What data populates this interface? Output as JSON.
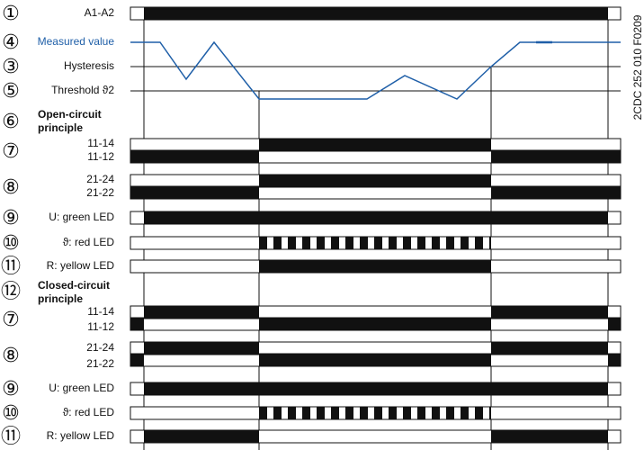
{
  "rows": [
    {
      "num": "①",
      "labels": [
        "A1-A2"
      ]
    },
    {
      "num": "④",
      "labels": [
        "Measured value"
      ]
    },
    {
      "num": "③",
      "labels": [
        "Hysteresis"
      ]
    },
    {
      "num": "⑤",
      "labels": [
        "Threshold ϑ2"
      ]
    },
    {
      "num": "⑥",
      "labels": [
        "Open-circuit",
        "principle"
      ]
    },
    {
      "num": "⑦",
      "labels": [
        "11-14",
        "11-12"
      ]
    },
    {
      "num": "⑧",
      "labels": [
        "21-24",
        "21-22"
      ]
    },
    {
      "num": "⑨",
      "labels": [
        "U: green LED"
      ]
    },
    {
      "num": "⑩",
      "labels": [
        "ϑ: red LED"
      ]
    },
    {
      "num": "⑪",
      "labels": [
        "R: yellow LED"
      ]
    },
    {
      "num": "⑫",
      "labels": [
        "Closed-circuit",
        "principle"
      ]
    },
    {
      "num": "⑦",
      "labels": [
        "11-14",
        "11-12"
      ]
    },
    {
      "num": "⑧",
      "labels": [
        "21-24",
        "21-22"
      ]
    },
    {
      "num": "⑨",
      "labels": [
        "U: green LED"
      ]
    },
    {
      "num": "⑩",
      "labels": [
        "ϑ: red LED"
      ]
    },
    {
      "num": "⑪",
      "labels": [
        "R: yellow LED"
      ]
    }
  ],
  "code": "2CDC 252 010 F0209"
}
